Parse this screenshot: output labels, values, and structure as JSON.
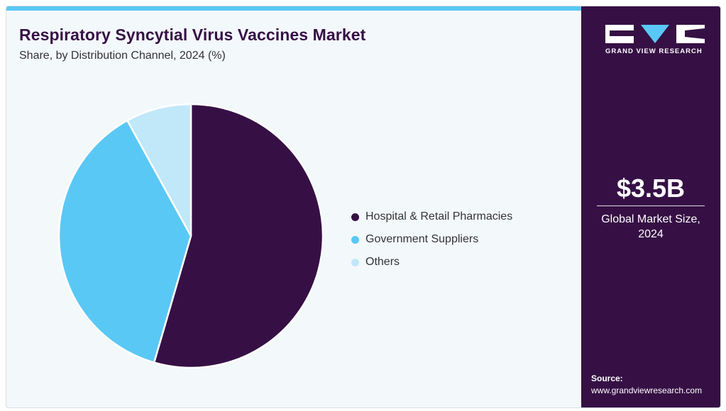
{
  "header": {
    "title": "Respiratory Syncytial Virus Vaccines Market",
    "subtitle": "Share, by Distribution Channel, 2024 (%)"
  },
  "chart_data": {
    "type": "pie",
    "title": "Respiratory Syncytial Virus Vaccines Market",
    "subtitle": "Share, by Distribution Channel, 2024 (%)",
    "categories": [
      "Hospital & Retail Pharmacies",
      "Government Suppliers",
      "Others"
    ],
    "values": [
      54.5,
      37.5,
      8.0
    ],
    "colors": [
      "#361045",
      "#5ac8f5",
      "#c0e8f9"
    ],
    "start": "12 o'clock, clockwise",
    "legend_position": "right"
  },
  "sidebar": {
    "logo_text": "GRAND VIEW RESEARCH",
    "market_value": "$3.5B",
    "market_label_line1": "Global Market Size,",
    "market_label_line2": "2024",
    "source_label": "Source:",
    "source_url": "www.grandviewresearch.com"
  },
  "colors": {
    "brand_purple": "#361045",
    "accent_blue": "#5ac8f5",
    "light_blue": "#c0e8f9",
    "background": "#f3f8fb"
  }
}
